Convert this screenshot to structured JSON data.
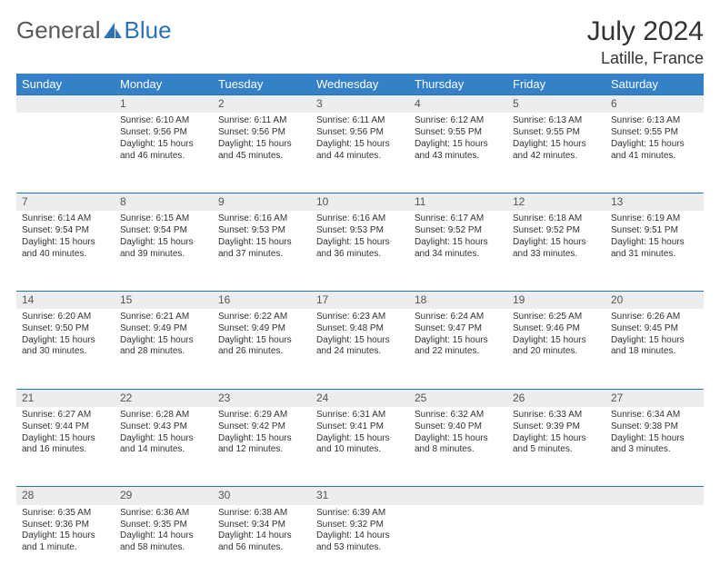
{
  "logo": {
    "text1": "General",
    "text2": "Blue"
  },
  "title": "July 2024",
  "location": "Latille, France",
  "colors": {
    "header_bg": "#3481c8",
    "header_text": "#ffffff",
    "daynum_bg": "#ecedee",
    "row_border": "#2d72b5",
    "logo_general": "#5a5a5a",
    "logo_blue": "#2d72b5",
    "body_text": "#333333"
  },
  "weekdays": [
    "Sunday",
    "Monday",
    "Tuesday",
    "Wednesday",
    "Thursday",
    "Friday",
    "Saturday"
  ],
  "weeks": [
    {
      "nums": [
        "",
        "1",
        "2",
        "3",
        "4",
        "5",
        "6"
      ],
      "cells": [
        {
          "sunrise": "",
          "sunset": "",
          "daylight": ""
        },
        {
          "sunrise": "Sunrise: 6:10 AM",
          "sunset": "Sunset: 9:56 PM",
          "daylight": "Daylight: 15 hours and 46 minutes."
        },
        {
          "sunrise": "Sunrise: 6:11 AM",
          "sunset": "Sunset: 9:56 PM",
          "daylight": "Daylight: 15 hours and 45 minutes."
        },
        {
          "sunrise": "Sunrise: 6:11 AM",
          "sunset": "Sunset: 9:56 PM",
          "daylight": "Daylight: 15 hours and 44 minutes."
        },
        {
          "sunrise": "Sunrise: 6:12 AM",
          "sunset": "Sunset: 9:55 PM",
          "daylight": "Daylight: 15 hours and 43 minutes."
        },
        {
          "sunrise": "Sunrise: 6:13 AM",
          "sunset": "Sunset: 9:55 PM",
          "daylight": "Daylight: 15 hours and 42 minutes."
        },
        {
          "sunrise": "Sunrise: 6:13 AM",
          "sunset": "Sunset: 9:55 PM",
          "daylight": "Daylight: 15 hours and 41 minutes."
        }
      ]
    },
    {
      "nums": [
        "7",
        "8",
        "9",
        "10",
        "11",
        "12",
        "13"
      ],
      "cells": [
        {
          "sunrise": "Sunrise: 6:14 AM",
          "sunset": "Sunset: 9:54 PM",
          "daylight": "Daylight: 15 hours and 40 minutes."
        },
        {
          "sunrise": "Sunrise: 6:15 AM",
          "sunset": "Sunset: 9:54 PM",
          "daylight": "Daylight: 15 hours and 39 minutes."
        },
        {
          "sunrise": "Sunrise: 6:16 AM",
          "sunset": "Sunset: 9:53 PM",
          "daylight": "Daylight: 15 hours and 37 minutes."
        },
        {
          "sunrise": "Sunrise: 6:16 AM",
          "sunset": "Sunset: 9:53 PM",
          "daylight": "Daylight: 15 hours and 36 minutes."
        },
        {
          "sunrise": "Sunrise: 6:17 AM",
          "sunset": "Sunset: 9:52 PM",
          "daylight": "Daylight: 15 hours and 34 minutes."
        },
        {
          "sunrise": "Sunrise: 6:18 AM",
          "sunset": "Sunset: 9:52 PM",
          "daylight": "Daylight: 15 hours and 33 minutes."
        },
        {
          "sunrise": "Sunrise: 6:19 AM",
          "sunset": "Sunset: 9:51 PM",
          "daylight": "Daylight: 15 hours and 31 minutes."
        }
      ]
    },
    {
      "nums": [
        "14",
        "15",
        "16",
        "17",
        "18",
        "19",
        "20"
      ],
      "cells": [
        {
          "sunrise": "Sunrise: 6:20 AM",
          "sunset": "Sunset: 9:50 PM",
          "daylight": "Daylight: 15 hours and 30 minutes."
        },
        {
          "sunrise": "Sunrise: 6:21 AM",
          "sunset": "Sunset: 9:49 PM",
          "daylight": "Daylight: 15 hours and 28 minutes."
        },
        {
          "sunrise": "Sunrise: 6:22 AM",
          "sunset": "Sunset: 9:49 PM",
          "daylight": "Daylight: 15 hours and 26 minutes."
        },
        {
          "sunrise": "Sunrise: 6:23 AM",
          "sunset": "Sunset: 9:48 PM",
          "daylight": "Daylight: 15 hours and 24 minutes."
        },
        {
          "sunrise": "Sunrise: 6:24 AM",
          "sunset": "Sunset: 9:47 PM",
          "daylight": "Daylight: 15 hours and 22 minutes."
        },
        {
          "sunrise": "Sunrise: 6:25 AM",
          "sunset": "Sunset: 9:46 PM",
          "daylight": "Daylight: 15 hours and 20 minutes."
        },
        {
          "sunrise": "Sunrise: 6:26 AM",
          "sunset": "Sunset: 9:45 PM",
          "daylight": "Daylight: 15 hours and 18 minutes."
        }
      ]
    },
    {
      "nums": [
        "21",
        "22",
        "23",
        "24",
        "25",
        "26",
        "27"
      ],
      "cells": [
        {
          "sunrise": "Sunrise: 6:27 AM",
          "sunset": "Sunset: 9:44 PM",
          "daylight": "Daylight: 15 hours and 16 minutes."
        },
        {
          "sunrise": "Sunrise: 6:28 AM",
          "sunset": "Sunset: 9:43 PM",
          "daylight": "Daylight: 15 hours and 14 minutes."
        },
        {
          "sunrise": "Sunrise: 6:29 AM",
          "sunset": "Sunset: 9:42 PM",
          "daylight": "Daylight: 15 hours and 12 minutes."
        },
        {
          "sunrise": "Sunrise: 6:31 AM",
          "sunset": "Sunset: 9:41 PM",
          "daylight": "Daylight: 15 hours and 10 minutes."
        },
        {
          "sunrise": "Sunrise: 6:32 AM",
          "sunset": "Sunset: 9:40 PM",
          "daylight": "Daylight: 15 hours and 8 minutes."
        },
        {
          "sunrise": "Sunrise: 6:33 AM",
          "sunset": "Sunset: 9:39 PM",
          "daylight": "Daylight: 15 hours and 5 minutes."
        },
        {
          "sunrise": "Sunrise: 6:34 AM",
          "sunset": "Sunset: 9:38 PM",
          "daylight": "Daylight: 15 hours and 3 minutes."
        }
      ]
    },
    {
      "nums": [
        "28",
        "29",
        "30",
        "31",
        "",
        "",
        ""
      ],
      "cells": [
        {
          "sunrise": "Sunrise: 6:35 AM",
          "sunset": "Sunset: 9:36 PM",
          "daylight": "Daylight: 15 hours and 1 minute."
        },
        {
          "sunrise": "Sunrise: 6:36 AM",
          "sunset": "Sunset: 9:35 PM",
          "daylight": "Daylight: 14 hours and 58 minutes."
        },
        {
          "sunrise": "Sunrise: 6:38 AM",
          "sunset": "Sunset: 9:34 PM",
          "daylight": "Daylight: 14 hours and 56 minutes."
        },
        {
          "sunrise": "Sunrise: 6:39 AM",
          "sunset": "Sunset: 9:32 PM",
          "daylight": "Daylight: 14 hours and 53 minutes."
        },
        {
          "sunrise": "",
          "sunset": "",
          "daylight": ""
        },
        {
          "sunrise": "",
          "sunset": "",
          "daylight": ""
        },
        {
          "sunrise": "",
          "sunset": "",
          "daylight": ""
        }
      ]
    }
  ]
}
